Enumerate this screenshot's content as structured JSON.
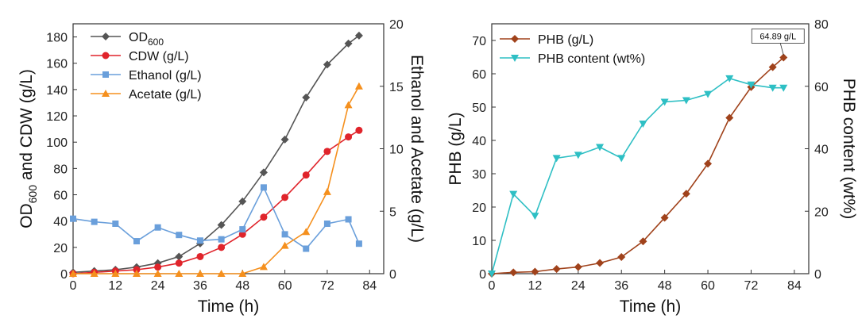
{
  "chart_data": [
    {
      "type": "line",
      "xlabel": "Time (h)",
      "ylabel_parts": [
        "OD",
        "600",
        " and CDW (g/L)"
      ],
      "y2label": "Ethanol and Acetate (g/L)",
      "xlim": [
        0,
        88
      ],
      "xticks": [
        0,
        12,
        24,
        36,
        48,
        60,
        72,
        84
      ],
      "ylim": [
        0,
        190
      ],
      "yticks": [
        0,
        20,
        40,
        60,
        80,
        100,
        120,
        140,
        160,
        180
      ],
      "y2lim": [
        0,
        20
      ],
      "y2ticks": [
        0,
        5,
        10,
        15,
        20
      ],
      "legend_position": "top-left",
      "series": [
        {
          "name": "OD600",
          "legend_main": "OD",
          "legend_sub": "600",
          "axis": "left",
          "color": "#555555",
          "marker": "diamond",
          "x": [
            0,
            6,
            12,
            18,
            24,
            30,
            36,
            42,
            48,
            54,
            60,
            66,
            72,
            78,
            81
          ],
          "y": [
            1,
            2,
            3,
            5,
            8,
            13,
            23,
            37,
            55,
            77,
            102,
            134,
            159,
            175,
            181
          ]
        },
        {
          "name": "CDW (g/L)",
          "legend_main": "CDW (g/L)",
          "legend_sub": "",
          "axis": "left",
          "color": "#e0242b",
          "marker": "circle",
          "x": [
            0,
            6,
            12,
            18,
            24,
            30,
            36,
            42,
            48,
            54,
            60,
            66,
            72,
            78,
            81
          ],
          "y": [
            0,
            1,
            2,
            3,
            5,
            8,
            13,
            20,
            30,
            43,
            58,
            75,
            93,
            104,
            109
          ]
        },
        {
          "name": "Ethanol (g/L)",
          "legend_main": "Ethanol (g/L)",
          "legend_sub": "",
          "axis": "right",
          "color": "#6a9fdb",
          "marker": "square",
          "x": [
            0,
            6,
            12,
            18,
            24,
            30,
            36,
            42,
            48,
            54,
            60,
            66,
            72,
            78,
            81
          ],
          "y": [
            4.4,
            4.15,
            4.0,
            2.6,
            3.7,
            3.1,
            2.65,
            2.75,
            3.55,
            6.9,
            3.15,
            2.0,
            4.0,
            4.35,
            2.4
          ]
        },
        {
          "name": "Acetate (g/L)",
          "legend_main": "Acetate (g/L)",
          "legend_sub": "",
          "axis": "right",
          "color": "#f5901e",
          "marker": "triangle",
          "x": [
            0,
            6,
            12,
            18,
            24,
            30,
            36,
            42,
            48,
            54,
            60,
            66,
            72,
            78,
            81
          ],
          "y": [
            0,
            0,
            0,
            0,
            0,
            0,
            0,
            0,
            0,
            0.55,
            2.25,
            3.35,
            6.55,
            13.5,
            15.0
          ]
        }
      ]
    },
    {
      "type": "line",
      "xlabel": "Time (h)",
      "ylabel": "PHB (g/L)",
      "y2label": "PHB content (wt%)",
      "xlim": [
        0,
        88
      ],
      "xticks": [
        0,
        12,
        24,
        36,
        48,
        60,
        72,
        84
      ],
      "ylim": [
        0,
        75
      ],
      "yticks": [
        0,
        10,
        20,
        30,
        40,
        50,
        60,
        70
      ],
      "y2lim": [
        0,
        80
      ],
      "y2ticks": [
        0,
        20,
        40,
        60,
        80
      ],
      "legend_position": "top-left",
      "annotation": {
        "text": "64.89 g/L",
        "x": 81,
        "y": 64.89
      },
      "series": [
        {
          "name": "PHB (g/L)",
          "axis": "left",
          "color": "#a0421b",
          "marker": "diamond",
          "x": [
            0,
            6,
            12,
            18,
            24,
            30,
            36,
            42,
            48,
            54,
            60,
            66,
            72,
            78,
            81
          ],
          "y": [
            0,
            0.4,
            0.6,
            1.4,
            2.0,
            3.2,
            5.0,
            9.7,
            16.8,
            24.0,
            33.0,
            46.8,
            56.0,
            62.0,
            64.89
          ]
        },
        {
          "name": "PHB content (wt%)",
          "axis": "right",
          "color": "#2ebfc4",
          "marker": "triangle-down",
          "x": [
            0,
            6,
            12,
            18,
            24,
            30,
            36,
            42,
            48,
            54,
            60,
            66,
            72,
            78,
            81
          ],
          "y": [
            0,
            25.5,
            18.5,
            37,
            38,
            40.5,
            37,
            48,
            55,
            55.5,
            57.5,
            62.5,
            60.5,
            59.5,
            59.5
          ]
        }
      ]
    }
  ]
}
